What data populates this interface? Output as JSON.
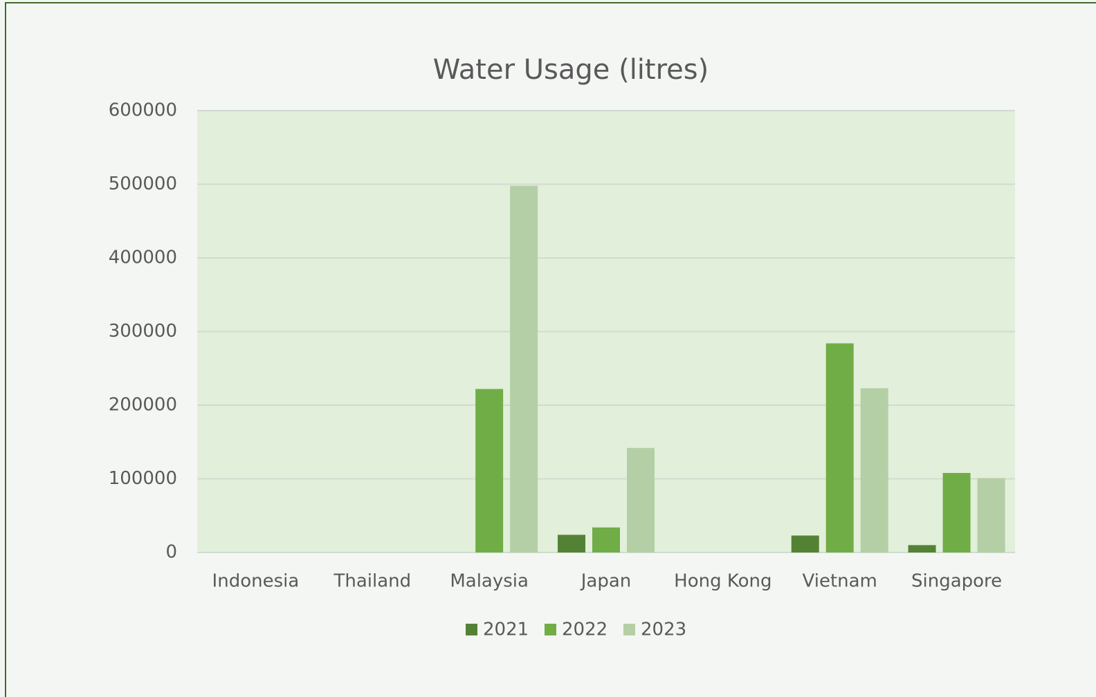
{
  "chart_data": {
    "type": "bar",
    "title": "Water Usage (litres)",
    "categories": [
      "Indonesia",
      "Thailand",
      "Malaysia",
      "Japan",
      "Hong Kong",
      "Vietnam",
      "Singapore"
    ],
    "series": [
      {
        "name": "2021",
        "color": "#548235",
        "values": [
          0,
          0,
          0,
          24000,
          0,
          23000,
          10000
        ]
      },
      {
        "name": "2022",
        "color": "#70ad47",
        "values": [
          0,
          0,
          222000,
          34000,
          0,
          284000,
          108000
        ]
      },
      {
        "name": "2023",
        "color": "#b4cfa5",
        "values": [
          0,
          0,
          498000,
          142000,
          0,
          223000,
          101000
        ]
      }
    ],
    "ylim": [
      0,
      600000
    ],
    "yticks": [
      0,
      100000,
      200000,
      300000,
      400000,
      500000,
      600000
    ],
    "grid": true,
    "legend": "bottom"
  }
}
